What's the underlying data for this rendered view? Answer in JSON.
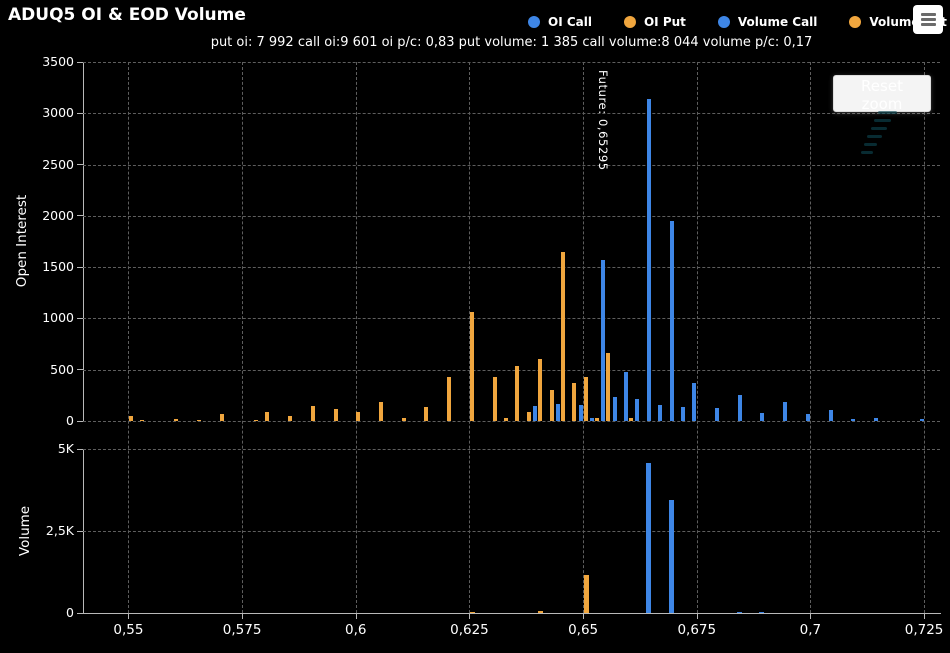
{
  "title": "ADUQ5 OI & EOD Volume",
  "subtitle": "put oi: 7 992 call oi:9 601 oi p/c: 0,83 put volume: 1 385 call volume:8 044 volume p/c: 0,17",
  "reset_zoom_label": "Reset zoom",
  "future_label": "Future: 0,65295",
  "colors": {
    "call": "#3e86e6",
    "put": "#f0a63e",
    "grid": "#5e5e5e",
    "axis": "#b9b9b9",
    "watermark": "#0e4753"
  },
  "legend": [
    {
      "label": "OI Call",
      "color_key": "call"
    },
    {
      "label": "OI Put",
      "color_key": "put"
    },
    {
      "label": "Volume Call",
      "color_key": "call"
    },
    {
      "label": "Volume Put",
      "color_key": "put"
    }
  ],
  "xaxis": {
    "min": 0.54,
    "max": 0.7285,
    "values": [
      0.55,
      0.575,
      0.6,
      0.625,
      0.65,
      0.675,
      0.7,
      0.725
    ],
    "ticks": [
      "0,55",
      "0,575",
      "0,6",
      "0,625",
      "0,65",
      "0,675",
      "0,7",
      "0,725"
    ]
  },
  "chart_data": [
    {
      "type": "bar",
      "ylabel": "Open Interest",
      "ylim": [
        0,
        3500
      ],
      "grid": true,
      "legend_position": "top",
      "yticks": [
        {
          "v": 0,
          "label": "0"
        },
        {
          "v": 500,
          "label": "500"
        },
        {
          "v": 1000,
          "label": "1000"
        },
        {
          "v": 1500,
          "label": "1500"
        },
        {
          "v": 2000,
          "label": "2000"
        },
        {
          "v": 2500,
          "label": "2500"
        },
        {
          "v": 3000,
          "label": "3000"
        },
        {
          "v": 3500,
          "label": "3500"
        }
      ],
      "series": [
        {
          "name": "OI Call",
          "color_key": "call"
        },
        {
          "name": "OI Put",
          "color_key": "put"
        }
      ],
      "points": [
        {
          "strike": 0.55,
          "call": 0,
          "put": 50
        },
        {
          "strike": 0.5525,
          "call": 0,
          "put": 10
        },
        {
          "strike": 0.56,
          "call": 0,
          "put": 15
        },
        {
          "strike": 0.565,
          "call": 0,
          "put": 10
        },
        {
          "strike": 0.57,
          "call": 0,
          "put": 65
        },
        {
          "strike": 0.5775,
          "call": 0,
          "put": 10
        },
        {
          "strike": 0.58,
          "call": 0,
          "put": 90
        },
        {
          "strike": 0.585,
          "call": 0,
          "put": 45
        },
        {
          "strike": 0.59,
          "call": 0,
          "put": 145
        },
        {
          "strike": 0.595,
          "call": 0,
          "put": 115
        },
        {
          "strike": 0.6,
          "call": 0,
          "put": 85
        },
        {
          "strike": 0.605,
          "call": 0,
          "put": 185
        },
        {
          "strike": 0.61,
          "call": 0,
          "put": 30
        },
        {
          "strike": 0.615,
          "call": 0,
          "put": 135
        },
        {
          "strike": 0.62,
          "call": 0,
          "put": 430
        },
        {
          "strike": 0.625,
          "call": 0,
          "put": 1060
        },
        {
          "strike": 0.63,
          "call": 0,
          "put": 430
        },
        {
          "strike": 0.6325,
          "call": 0,
          "put": 25
        },
        {
          "strike": 0.635,
          "call": 0,
          "put": 540
        },
        {
          "strike": 0.6375,
          "call": 0,
          "put": 85
        },
        {
          "strike": 0.64,
          "call": 150,
          "put": 600
        },
        {
          "strike": 0.6425,
          "call": 0,
          "put": 300
        },
        {
          "strike": 0.645,
          "call": 165,
          "put": 1650
        },
        {
          "strike": 0.6475,
          "call": 0,
          "put": 370
        },
        {
          "strike": 0.65,
          "call": 155,
          "put": 430
        },
        {
          "strike": 0.6525,
          "call": 25,
          "put": 25
        },
        {
          "strike": 0.655,
          "call": 1570,
          "put": 660
        },
        {
          "strike": 0.6575,
          "call": 230,
          "put": 0
        },
        {
          "strike": 0.66,
          "call": 480,
          "put": 30
        },
        {
          "strike": 0.6625,
          "call": 215,
          "put": 0
        },
        {
          "strike": 0.665,
          "call": 3140,
          "put": 0
        },
        {
          "strike": 0.6675,
          "call": 155,
          "put": 0
        },
        {
          "strike": 0.67,
          "call": 1945,
          "put": 0
        },
        {
          "strike": 0.6725,
          "call": 140,
          "put": 0
        },
        {
          "strike": 0.675,
          "call": 370,
          "put": 0
        },
        {
          "strike": 0.68,
          "call": 130,
          "put": 0
        },
        {
          "strike": 0.685,
          "call": 250,
          "put": 0
        },
        {
          "strike": 0.69,
          "call": 80,
          "put": 0
        },
        {
          "strike": 0.695,
          "call": 185,
          "put": 0
        },
        {
          "strike": 0.7,
          "call": 70,
          "put": 0
        },
        {
          "strike": 0.705,
          "call": 110,
          "put": 0
        },
        {
          "strike": 0.71,
          "call": 20,
          "put": 0
        },
        {
          "strike": 0.715,
          "call": 25,
          "put": 0
        },
        {
          "strike": 0.725,
          "call": 20,
          "put": 0
        }
      ]
    },
    {
      "type": "bar",
      "ylabel": "Volume",
      "ylim": [
        0,
        5000
      ],
      "grid": true,
      "yticks": [
        {
          "v": 0,
          "label": "0"
        },
        {
          "v": 2500,
          "label": "2,5K"
        },
        {
          "v": 5000,
          "label": "5K"
        }
      ],
      "series": [
        {
          "name": "Volume Call",
          "color_key": "call"
        },
        {
          "name": "Volume Put",
          "color_key": "put"
        }
      ],
      "points": [
        {
          "strike": 0.625,
          "call": 0,
          "put": 40
        },
        {
          "strike": 0.64,
          "call": 0,
          "put": 60
        },
        {
          "strike": 0.65,
          "call": 0,
          "put": 1160
        },
        {
          "strike": 0.665,
          "call": 4570,
          "put": 0
        },
        {
          "strike": 0.67,
          "call": 3450,
          "put": 0
        },
        {
          "strike": 0.685,
          "call": 40,
          "put": 0
        },
        {
          "strike": 0.69,
          "call": 30,
          "put": 0
        }
      ]
    }
  ]
}
